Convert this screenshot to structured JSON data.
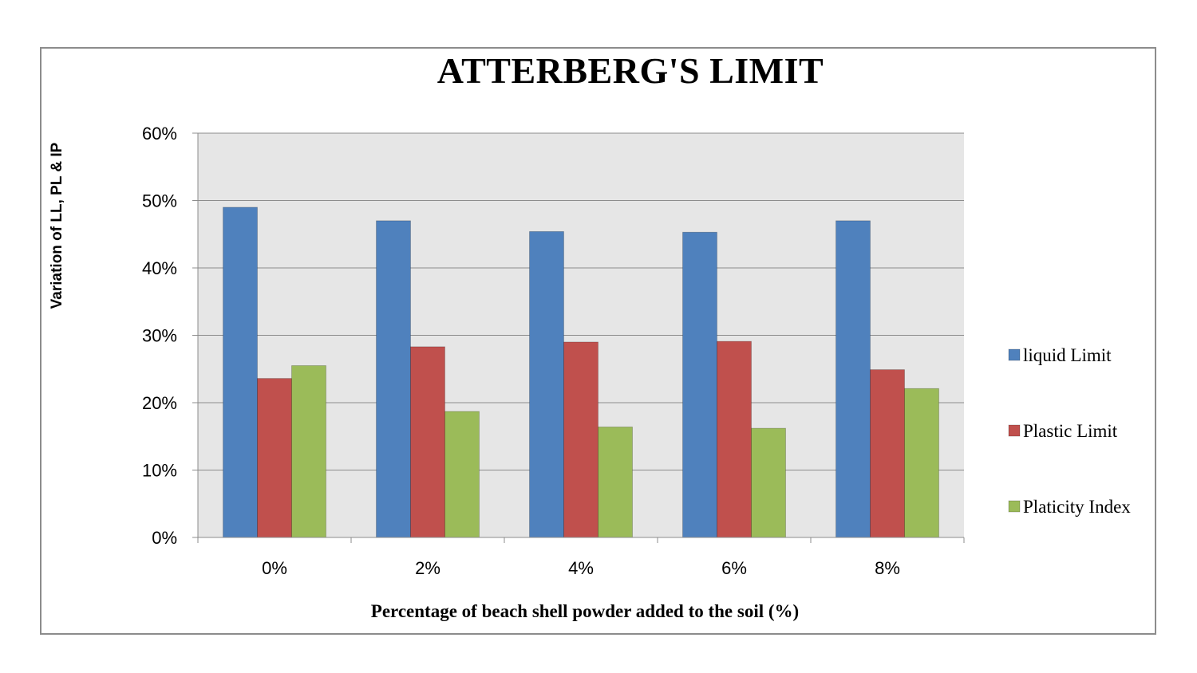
{
  "chart_data": {
    "type": "bar",
    "title": "ATTERBERG'S LIMIT",
    "xlabel": "Percentage of beach shell powder added to the soil (%)",
    "ylabel": "Variation of LL, PL & IP",
    "categories": [
      "0%",
      "2%",
      "4%",
      "6%",
      "8%"
    ],
    "series": [
      {
        "name": "liquid Limit",
        "color": "#4F81BD",
        "values": [
          0.49,
          0.47,
          0.454,
          0.453,
          0.47
        ]
      },
      {
        "name": "Plastic Limit",
        "color": "#C0504D",
        "values": [
          0.236,
          0.283,
          0.29,
          0.291,
          0.249
        ]
      },
      {
        "name": "Platicity Index",
        "color": "#9BBB59",
        "values": [
          0.255,
          0.187,
          0.164,
          0.162,
          0.221
        ]
      }
    ],
    "ylim": [
      0,
      0.6
    ],
    "yticks": [
      0,
      0.1,
      0.2,
      0.3,
      0.4,
      0.5,
      0.6
    ],
    "ytick_labels": [
      "0%",
      "10%",
      "20%",
      "30%",
      "40%",
      "50%",
      "60%"
    ],
    "grid": true,
    "legend_position": "right",
    "plot_background": "#E6E6E6"
  }
}
